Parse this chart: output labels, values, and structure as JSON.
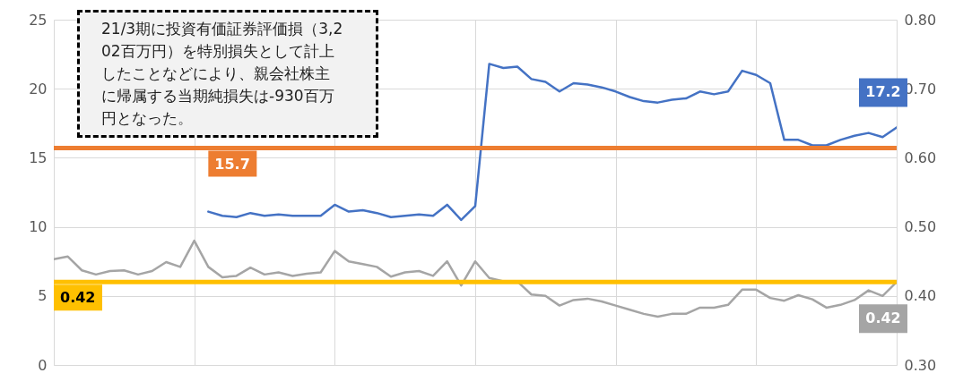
{
  "chart_data": {
    "type": "line",
    "categories": [
      null,
      null,
      null,
      null,
      null,
      null,
      null,
      null,
      null,
      null,
      null,
      null,
      null,
      null,
      null,
      null,
      null,
      null,
      null,
      null,
      null,
      null,
      null,
      null,
      null,
      null,
      null,
      null,
      null,
      null,
      null,
      null,
      null,
      null,
      null,
      null,
      null,
      null,
      null,
      null,
      null,
      null,
      null,
      null,
      null,
      null,
      null,
      null,
      null,
      null,
      null,
      null,
      null,
      null,
      null,
      null,
      null,
      null,
      null,
      null,
      null
    ],
    "ylim": [
      0,
      25
    ],
    "yticks": [
      0,
      5,
      10,
      15,
      20,
      25
    ],
    "y2lim": [
      0.3,
      0.8
    ],
    "y2ticks": [
      {
        "value": 0.3,
        "label": "0.30"
      },
      {
        "value": 0.4,
        "label": "0.40"
      },
      {
        "value": 0.5,
        "label": "0.50"
      },
      {
        "value": 0.6,
        "label": "0.60"
      },
      {
        "value": 0.7,
        "label": "0.70"
      },
      {
        "value": 0.8,
        "label": "0.80"
      }
    ],
    "grid": true,
    "series": [
      {
        "color": "#4472c4",
        "axis": "y",
        "values": [
          null,
          null,
          null,
          null,
          null,
          null,
          null,
          null,
          null,
          null,
          null,
          11.1,
          10.8,
          10.7,
          11.0,
          10.8,
          10.9,
          10.8,
          10.8,
          10.8,
          11.6,
          11.1,
          11.2,
          11.0,
          10.7,
          10.8,
          10.9,
          10.8,
          11.6,
          10.5,
          11.5,
          21.8,
          21.5,
          21.6,
          20.7,
          20.5,
          19.8,
          20.4,
          20.3,
          20.1,
          19.8,
          19.4,
          19.1,
          19.0,
          19.2,
          19.3,
          19.8,
          19.6,
          19.8,
          21.3,
          21.0,
          20.4,
          16.3,
          16.3,
          15.9,
          15.9,
          16.3,
          16.6,
          16.8,
          16.5,
          17.2
        ],
        "value_labels": [
          null,
          null,
          null,
          null,
          null,
          null,
          null,
          null,
          null,
          null,
          null,
          null,
          null,
          null,
          null,
          null,
          null,
          null,
          null,
          null,
          null,
          null,
          null,
          null,
          null,
          null,
          null,
          null,
          null,
          null,
          null,
          null,
          null,
          null,
          null,
          null,
          null,
          null,
          null,
          null,
          null,
          null,
          null,
          null,
          null,
          null,
          null,
          null,
          null,
          null,
          null,
          null,
          null,
          null,
          null,
          null,
          null,
          null,
          null,
          null,
          "17.2"
        ]
      },
      {
        "color": "#a5a5a5",
        "axis": "y2",
        "values": [
          0.453,
          0.457,
          0.437,
          0.431,
          0.436,
          0.437,
          0.431,
          0.436,
          0.449,
          0.442,
          0.48,
          0.442,
          0.427,
          0.429,
          0.441,
          0.431,
          0.434,
          0.429,
          0.432,
          0.434,
          0.465,
          0.45,
          0.446,
          0.442,
          0.428,
          0.434,
          0.436,
          0.429,
          0.45,
          0.415,
          0.45,
          0.426,
          0.421,
          0.421,
          0.402,
          0.4,
          0.386,
          0.394,
          0.396,
          0.392,
          0.386,
          0.38,
          0.374,
          0.37,
          0.374,
          0.374,
          0.383,
          0.383,
          0.387,
          0.409,
          0.409,
          0.397,
          0.393,
          0.401,
          0.395,
          0.383,
          0.387,
          0.394,
          0.408,
          0.4,
          0.42
        ],
        "value_labels": [
          null,
          null,
          null,
          null,
          null,
          null,
          null,
          null,
          null,
          null,
          null,
          null,
          null,
          null,
          null,
          null,
          null,
          null,
          null,
          null,
          null,
          null,
          null,
          null,
          null,
          null,
          null,
          null,
          null,
          null,
          null,
          null,
          null,
          null,
          null,
          null,
          null,
          null,
          null,
          null,
          null,
          null,
          null,
          null,
          null,
          null,
          null,
          null,
          null,
          null,
          null,
          null,
          null,
          null,
          null,
          null,
          null,
          null,
          null,
          null,
          "0.42"
        ]
      }
    ],
    "ref_lines": [
      {
        "axis": "y",
        "value": 15.7,
        "label": "15.7",
        "color": "#ed7d31"
      },
      {
        "axis": "y2",
        "value": 0.42,
        "label": "0.42",
        "color": "#ffc000"
      }
    ],
    "annotations": [
      "21/3期に投資有価証券評価損（3,202百万円）を特別損失として計上したことなどにより、親会社株主に帰属する当期純損失は-930百万円となった。"
    ]
  }
}
